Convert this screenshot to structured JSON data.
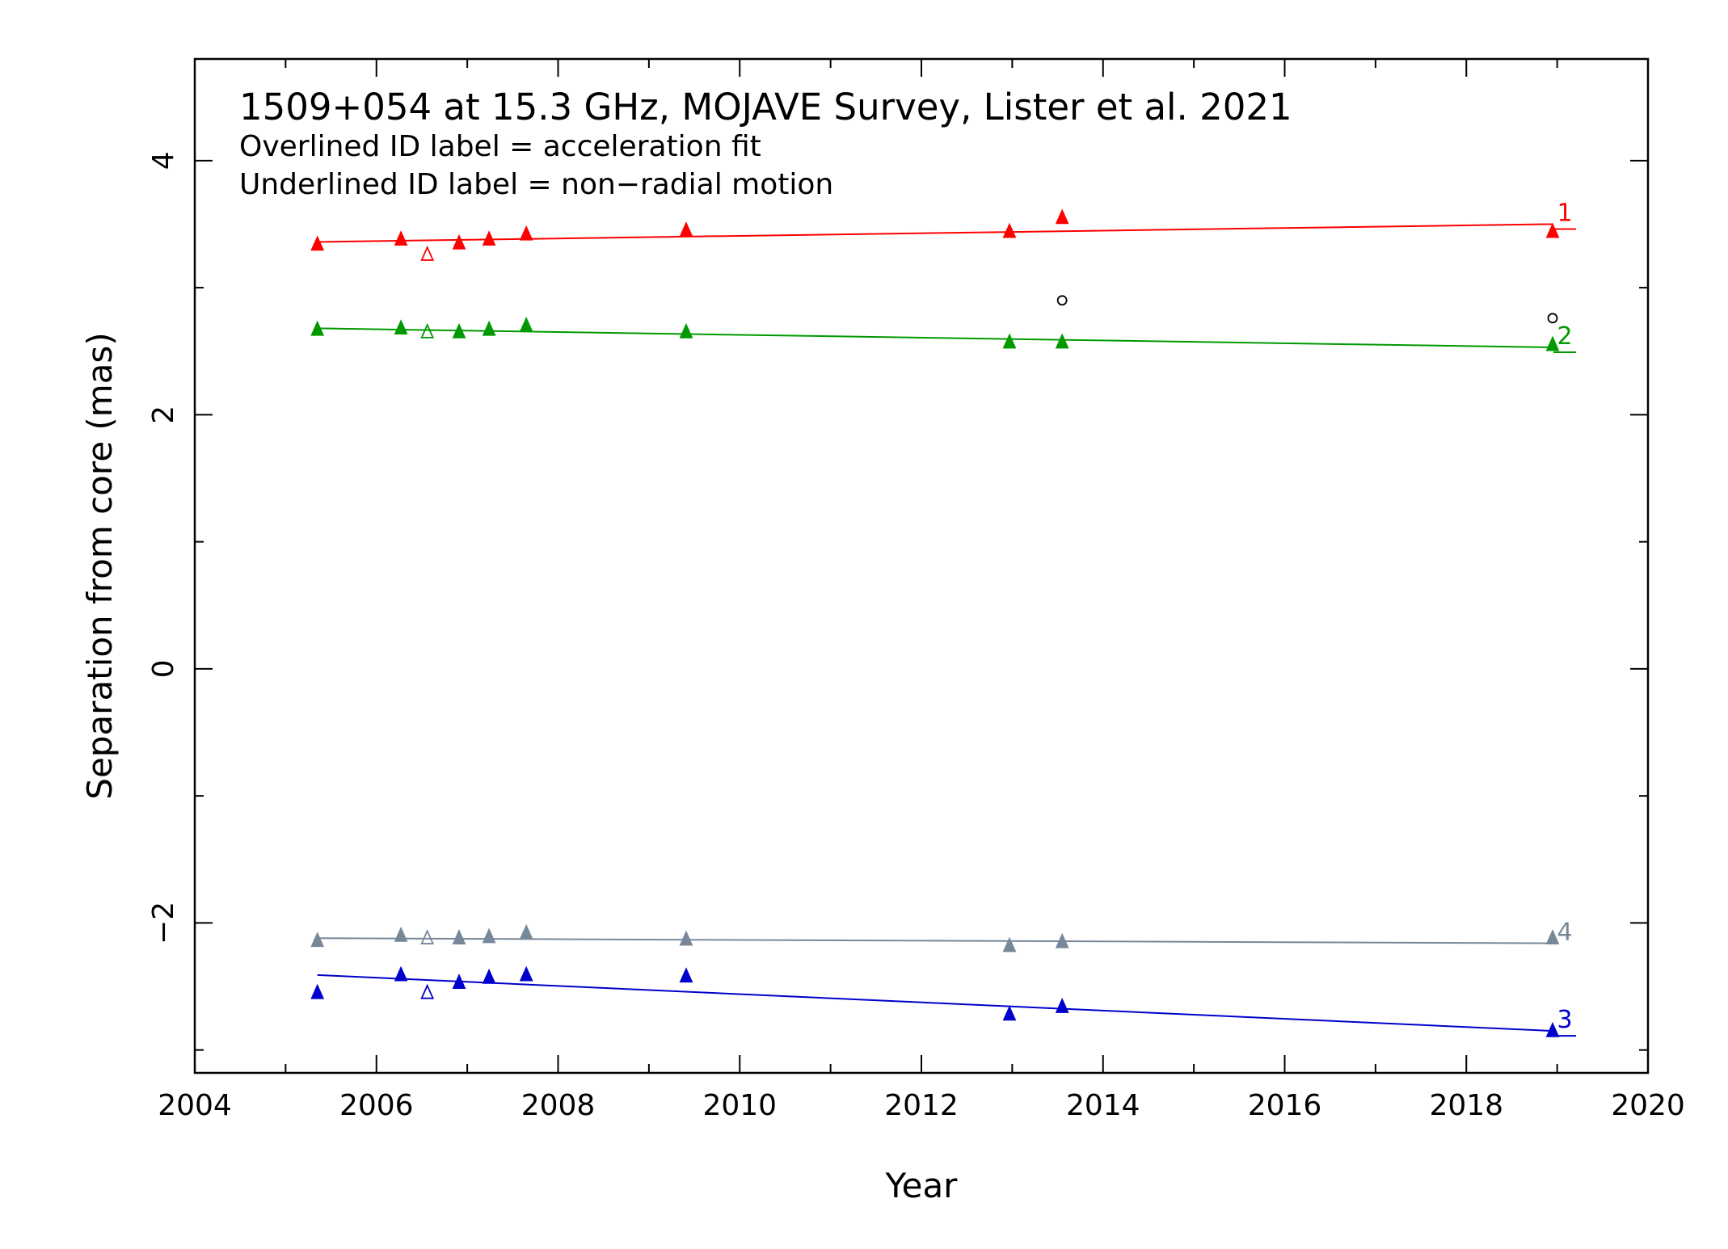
{
  "chart_data": {
    "type": "scatter",
    "title": "1509+054 at 15.3 GHz, MOJAVE Survey, Lister et al. 2021",
    "subtitle_lines": [
      "Overlined ID label = acceleration fit",
      "Underlined ID label = non−radial motion"
    ],
    "xlabel": "Year",
    "ylabel": "Separation from core (mas)",
    "xlim": [
      2004,
      2020
    ],
    "ylim": [
      -3.18,
      4.8
    ],
    "x_ticks": [
      2004,
      2006,
      2008,
      2010,
      2012,
      2014,
      2016,
      2018,
      2020
    ],
    "x_tick_labels": [
      "2004",
      "2006",
      "2008",
      "2010",
      "2012",
      "2014",
      "2016",
      "2018",
      "2020"
    ],
    "y_ticks": [
      -2,
      0,
      2,
      4
    ],
    "y_tick_labels": [
      "−2",
      "0",
      "2",
      "4"
    ],
    "grid": false,
    "series": [
      {
        "name": "1",
        "color": "#ff0000",
        "underlined": true,
        "x": [
          2005.35,
          2006.27,
          2006.56,
          2006.91,
          2007.24,
          2007.65,
          2009.41,
          2012.97,
          2013.55,
          2018.95
        ],
        "y": [
          3.34,
          3.38,
          3.26,
          3.35,
          3.38,
          3.42,
          3.45,
          3.44,
          3.55,
          3.44
        ],
        "filled": [
          true,
          true,
          false,
          true,
          true,
          true,
          true,
          true,
          true,
          true
        ],
        "fit": {
          "x": [
            2005.35,
            2018.95
          ],
          "y": [
            3.36,
            3.5
          ]
        }
      },
      {
        "name": "2",
        "color": "#009900",
        "underlined": true,
        "x": [
          2005.35,
          2006.27,
          2006.56,
          2006.91,
          2007.24,
          2007.65,
          2009.41,
          2012.97,
          2013.55,
          2018.95
        ],
        "y": [
          2.67,
          2.68,
          2.65,
          2.65,
          2.67,
          2.7,
          2.65,
          2.57,
          2.57,
          2.55
        ],
        "filled": [
          true,
          true,
          false,
          true,
          true,
          true,
          true,
          true,
          true,
          true
        ],
        "fit": {
          "x": [
            2005.35,
            2018.95
          ],
          "y": [
            2.68,
            2.53
          ]
        }
      },
      {
        "name": "4",
        "color": "#778899",
        "underlined": false,
        "x": [
          2005.35,
          2006.27,
          2006.56,
          2006.91,
          2007.24,
          2007.65,
          2009.41,
          2012.97,
          2013.55,
          2018.95
        ],
        "y": [
          -2.14,
          -2.1,
          -2.12,
          -2.12,
          -2.11,
          -2.08,
          -2.13,
          -2.18,
          -2.15,
          -2.12
        ],
        "filled": [
          true,
          true,
          false,
          true,
          true,
          true,
          true,
          true,
          true,
          true
        ],
        "fit": {
          "x": [
            2005.35,
            2018.95
          ],
          "y": [
            -2.12,
            -2.16
          ]
        }
      },
      {
        "name": "3",
        "color": "#0000cc",
        "underlined": true,
        "x": [
          2005.35,
          2006.27,
          2006.56,
          2006.91,
          2007.24,
          2007.65,
          2009.41,
          2012.97,
          2013.55,
          2018.95
        ],
        "y": [
          -2.55,
          -2.41,
          -2.55,
          -2.47,
          -2.43,
          -2.41,
          -2.42,
          -2.72,
          -2.66,
          -2.85
        ],
        "filled": [
          true,
          true,
          false,
          true,
          true,
          true,
          true,
          true,
          true,
          true
        ],
        "fit": {
          "x": [
            2005.35,
            2018.95
          ],
          "y": [
            -2.41,
            -2.85
          ]
        }
      }
    ],
    "unassigned_points": {
      "color": "#000000",
      "marker": "open-circle",
      "x": [
        2013.55,
        2018.95
      ],
      "y": [
        2.9,
        2.76
      ]
    }
  }
}
